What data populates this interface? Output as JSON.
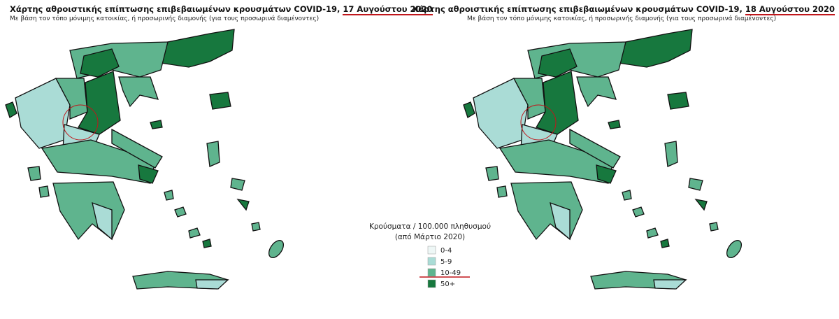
{
  "maps": [
    {
      "title": "Χάρτης αθροιστικής επίπτωσης επιβεβαιωμένων κρουσμάτων COVID-19,",
      "date": "17 Αυγούστου 2020",
      "subtitle": "Με βάση τον τόπο μόνιμης κατοικίας, ή προσωρινής διαμονής (για τους προσωρινά διαμένοντες)"
    },
    {
      "title": "Χάρτης αθροιστικής επίπτωσης επιβεβαιωμένων κρουσμάτων COVID-19,",
      "date": "18 Αυγούστου 2020",
      "subtitle": "Με βάση τον τόπο μόνιμης κατοικίας, ή προσωρινής διαμονής (για τους προσωρινά διαμένοντες)"
    }
  ],
  "legend": {
    "title": "Κρούσματα / 100.000 πληθυσμού",
    "subtitle": "(από Μάρτιο 2020)",
    "items": [
      {
        "label": "0-4",
        "color": "#eef7f6"
      },
      {
        "label": "5-9",
        "color": "#aadcd6"
      },
      {
        "label": "10-49",
        "color": "#5fb48e"
      },
      {
        "label": "50+",
        "color": "#17783e"
      }
    ]
  }
}
